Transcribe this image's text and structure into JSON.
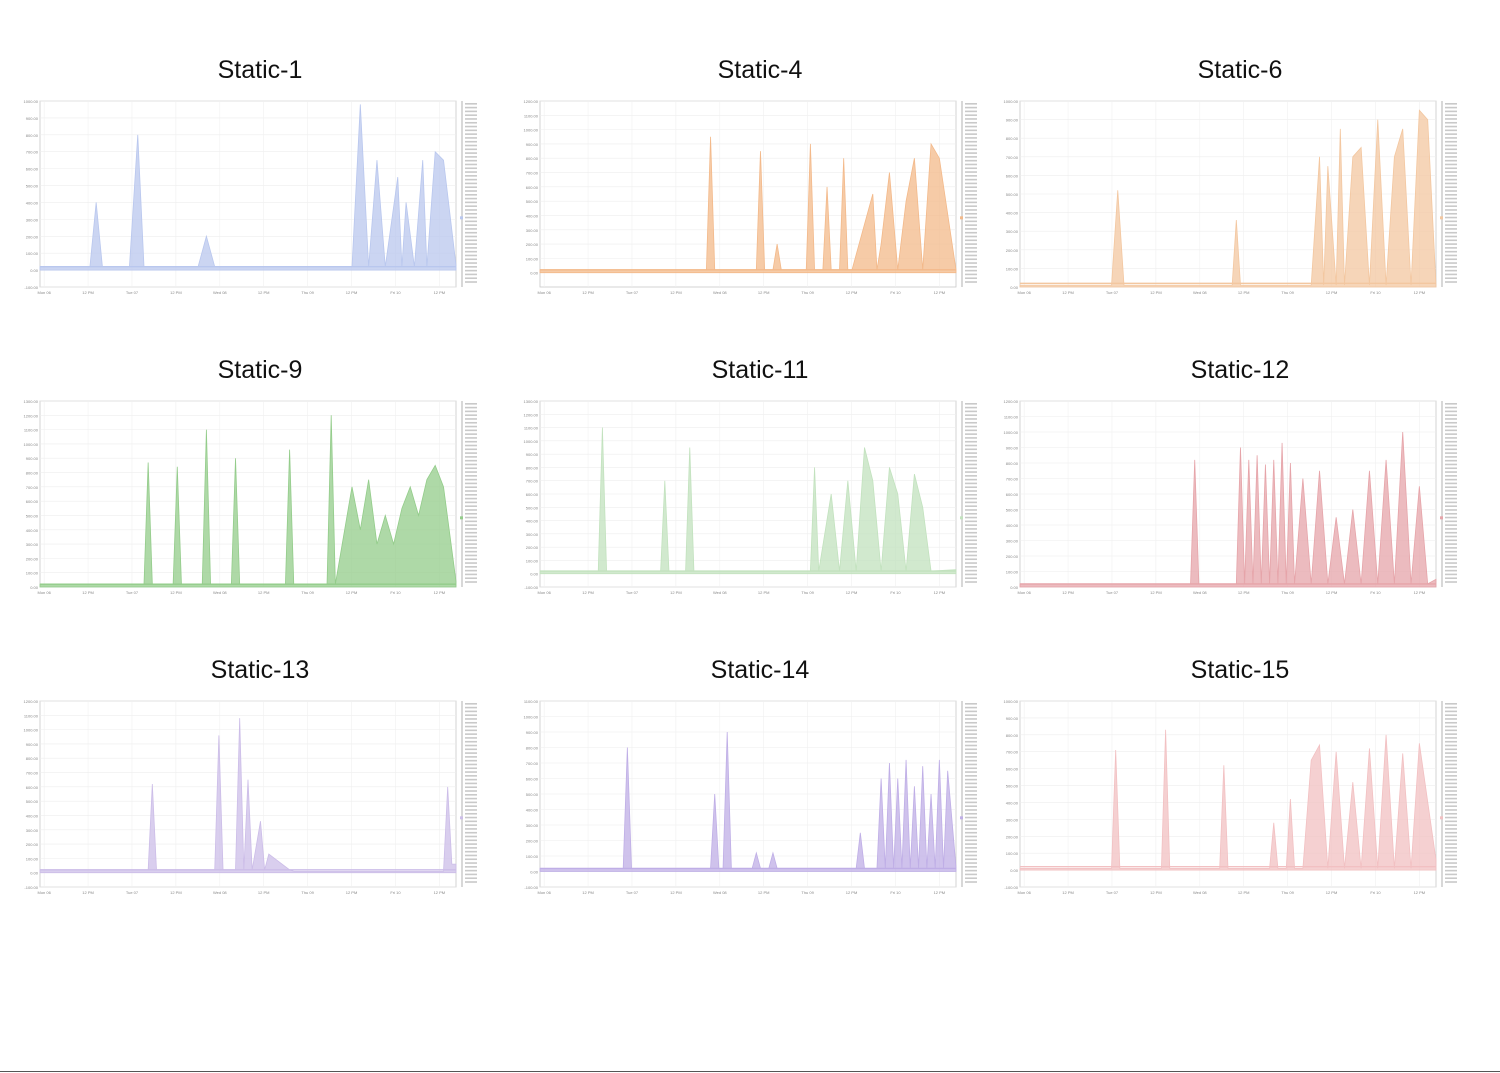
{
  "x_ticks": [
    "Mon 06",
    "12 PM",
    "Tue 07",
    "12 PM",
    "Wed 08",
    "12 PM",
    "Thu 09",
    "12 PM",
    "Fri 10",
    "12 PM"
  ],
  "chart_data": [
    {
      "type": "area",
      "title": "Static-1",
      "color": "#b9c7ee",
      "ylim": [
        -100,
        1000
      ],
      "y_ticks": [
        -100,
        0,
        100,
        200,
        300,
        400,
        500,
        600,
        700,
        800,
        900,
        1000
      ],
      "x": [
        0.0,
        0.12,
        0.135,
        0.15,
        0.215,
        0.235,
        0.25,
        0.38,
        0.4,
        0.42,
        0.69,
        0.75,
        0.77,
        0.79,
        0.81,
        0.83,
        0.86,
        0.87,
        0.88,
        0.9,
        0.92,
        0.93,
        0.95,
        0.97,
        1.0
      ],
      "values": [
        20,
        20,
        400,
        20,
        20,
        800,
        20,
        20,
        200,
        20,
        20,
        20,
        980,
        20,
        650,
        20,
        550,
        20,
        400,
        20,
        650,
        20,
        700,
        650,
        30
      ]
    },
    {
      "type": "area",
      "title": "Static-4",
      "color": "#f3b98a",
      "ylim": [
        -100,
        1200
      ],
      "y_ticks": [
        0,
        100,
        200,
        300,
        400,
        500,
        600,
        700,
        800,
        900,
        1000,
        1100,
        1200
      ],
      "x": [
        0.0,
        0.4,
        0.41,
        0.42,
        0.52,
        0.53,
        0.54,
        0.56,
        0.57,
        0.58,
        0.64,
        0.65,
        0.66,
        0.68,
        0.69,
        0.7,
        0.72,
        0.73,
        0.74,
        0.75,
        0.8,
        0.81,
        0.82,
        0.84,
        0.86,
        0.88,
        0.9,
        0.92,
        0.94,
        0.96,
        1.0
      ],
      "values": [
        20,
        20,
        950,
        20,
        20,
        850,
        20,
        20,
        200,
        20,
        20,
        900,
        20,
        20,
        600,
        20,
        20,
        800,
        20,
        20,
        550,
        20,
        200,
        700,
        20,
        500,
        800,
        20,
        900,
        800,
        20
      ]
    },
    {
      "type": "area",
      "title": "Static-6",
      "color": "#f3c7a0",
      "ylim": [
        0,
        1000
      ],
      "y_ticks": [
        0,
        100,
        200,
        300,
        400,
        500,
        600,
        700,
        800,
        900,
        1000
      ],
      "x": [
        0.0,
        0.22,
        0.235,
        0.25,
        0.51,
        0.52,
        0.53,
        0.7,
        0.72,
        0.73,
        0.74,
        0.76,
        0.77,
        0.78,
        0.8,
        0.82,
        0.84,
        0.86,
        0.88,
        0.9,
        0.92,
        0.94,
        0.96,
        0.98,
        1.0
      ],
      "values": [
        10,
        10,
        520,
        10,
        10,
        360,
        10,
        10,
        700,
        10,
        650,
        10,
        850,
        10,
        700,
        750,
        10,
        900,
        10,
        700,
        850,
        10,
        950,
        900,
        10
      ]
    },
    {
      "type": "area",
      "title": "Static-9",
      "color": "#93cc8a",
      "ylim": [
        0,
        1300
      ],
      "y_ticks": [
        0,
        100,
        200,
        300,
        400,
        500,
        600,
        700,
        800,
        900,
        1000,
        1100,
        1200,
        1300
      ],
      "x": [
        0.0,
        0.25,
        0.26,
        0.27,
        0.32,
        0.33,
        0.34,
        0.39,
        0.4,
        0.41,
        0.46,
        0.47,
        0.48,
        0.59,
        0.6,
        0.61,
        0.69,
        0.7,
        0.71,
        0.75,
        0.77,
        0.79,
        0.81,
        0.83,
        0.85,
        0.87,
        0.89,
        0.91,
        0.93,
        0.95,
        0.97,
        1.0
      ],
      "values": [
        20,
        20,
        870,
        20,
        20,
        840,
        20,
        20,
        1100,
        20,
        20,
        900,
        20,
        20,
        960,
        20,
        20,
        1200,
        20,
        700,
        400,
        750,
        300,
        500,
        300,
        550,
        700,
        500,
        750,
        850,
        700,
        40
      ]
    },
    {
      "type": "area",
      "title": "Static-11",
      "color": "#c2e2be",
      "ylim": [
        -100,
        1300
      ],
      "y_ticks": [
        -100,
        0,
        100,
        200,
        300,
        400,
        500,
        600,
        700,
        800,
        900,
        1000,
        1100,
        1200,
        1300
      ],
      "x": [
        0.0,
        0.14,
        0.15,
        0.16,
        0.29,
        0.3,
        0.31,
        0.35,
        0.36,
        0.37,
        0.65,
        0.66,
        0.67,
        0.7,
        0.72,
        0.74,
        0.76,
        0.78,
        0.8,
        0.82,
        0.84,
        0.86,
        0.88,
        0.9,
        0.92,
        0.94,
        1.0
      ],
      "values": [
        20,
        20,
        1100,
        20,
        20,
        700,
        20,
        20,
        950,
        20,
        20,
        800,
        20,
        600,
        20,
        700,
        20,
        950,
        700,
        20,
        800,
        600,
        20,
        750,
        500,
        20,
        30
      ]
    },
    {
      "type": "area",
      "title": "Static-12",
      "color": "#e6a4a9",
      "ylim": [
        0,
        1200
      ],
      "y_ticks": [
        0,
        100,
        200,
        300,
        400,
        500,
        600,
        700,
        800,
        900,
        1000,
        1100,
        1200
      ],
      "x": [
        0.0,
        0.41,
        0.42,
        0.43,
        0.52,
        0.53,
        0.54,
        0.55,
        0.56,
        0.57,
        0.58,
        0.59,
        0.6,
        0.61,
        0.62,
        0.63,
        0.64,
        0.65,
        0.66,
        0.68,
        0.7,
        0.72,
        0.74,
        0.76,
        0.78,
        0.8,
        0.82,
        0.84,
        0.86,
        0.88,
        0.9,
        0.92,
        0.94,
        0.96,
        0.98,
        1.0
      ],
      "values": [
        20,
        20,
        820,
        20,
        20,
        900,
        20,
        820,
        20,
        850,
        20,
        790,
        20,
        820,
        20,
        930,
        20,
        800,
        20,
        700,
        20,
        750,
        20,
        450,
        20,
        500,
        20,
        750,
        20,
        820,
        20,
        1000,
        20,
        650,
        20,
        50
      ]
    },
    {
      "type": "area",
      "title": "Static-13",
      "color": "#ccbde8",
      "ylim": [
        -100,
        1200
      ],
      "y_ticks": [
        -100,
        0,
        100,
        200,
        300,
        400,
        500,
        600,
        700,
        800,
        900,
        1000,
        1100,
        1200
      ],
      "x": [
        0.0,
        0.26,
        0.27,
        0.28,
        0.42,
        0.43,
        0.44,
        0.47,
        0.48,
        0.49,
        0.5,
        0.51,
        0.53,
        0.54,
        0.55,
        0.6,
        0.61,
        0.97,
        0.98,
        0.99,
        1.0
      ],
      "values": [
        20,
        20,
        620,
        20,
        20,
        960,
        20,
        20,
        1080,
        20,
        650,
        20,
        360,
        20,
        130,
        20,
        10,
        10,
        600,
        60,
        60
      ]
    },
    {
      "type": "area",
      "title": "Static-14",
      "color": "#bfaee6",
      "ylim": [
        -100,
        1100
      ],
      "y_ticks": [
        -100,
        0,
        100,
        200,
        300,
        400,
        500,
        600,
        700,
        800,
        900,
        1000,
        1100
      ],
      "x": [
        0.0,
        0.2,
        0.21,
        0.22,
        0.41,
        0.42,
        0.43,
        0.44,
        0.45,
        0.46,
        0.51,
        0.52,
        0.53,
        0.55,
        0.56,
        0.57,
        0.76,
        0.77,
        0.78,
        0.81,
        0.82,
        0.83,
        0.84,
        0.85,
        0.86,
        0.87,
        0.88,
        0.89,
        0.9,
        0.91,
        0.92,
        0.93,
        0.94,
        0.95,
        0.96,
        0.97,
        0.98,
        1.0
      ],
      "values": [
        20,
        20,
        800,
        20,
        20,
        500,
        20,
        20,
        900,
        20,
        20,
        120,
        20,
        20,
        120,
        20,
        20,
        250,
        20,
        20,
        600,
        20,
        700,
        20,
        600,
        20,
        720,
        20,
        550,
        20,
        680,
        20,
        500,
        20,
        720,
        20,
        650,
        30
      ]
    },
    {
      "type": "area",
      "title": "Static-15",
      "color": "#f2c0c2",
      "ylim": [
        -100,
        1000
      ],
      "y_ticks": [
        -100,
        0,
        100,
        200,
        300,
        400,
        500,
        600,
        700,
        800,
        900,
        1000
      ],
      "x": [
        0.0,
        0.22,
        0.23,
        0.24,
        0.34,
        0.35,
        0.36,
        0.48,
        0.49,
        0.5,
        0.6,
        0.61,
        0.62,
        0.64,
        0.65,
        0.66,
        0.68,
        0.7,
        0.72,
        0.74,
        0.76,
        0.78,
        0.8,
        0.82,
        0.84,
        0.86,
        0.88,
        0.9,
        0.92,
        0.94,
        0.96,
        1.0
      ],
      "values": [
        10,
        10,
        710,
        10,
        10,
        830,
        10,
        10,
        620,
        10,
        10,
        280,
        10,
        10,
        420,
        10,
        10,
        650,
        740,
        10,
        700,
        10,
        520,
        10,
        720,
        10,
        800,
        10,
        690,
        10,
        750,
        60
      ]
    }
  ]
}
